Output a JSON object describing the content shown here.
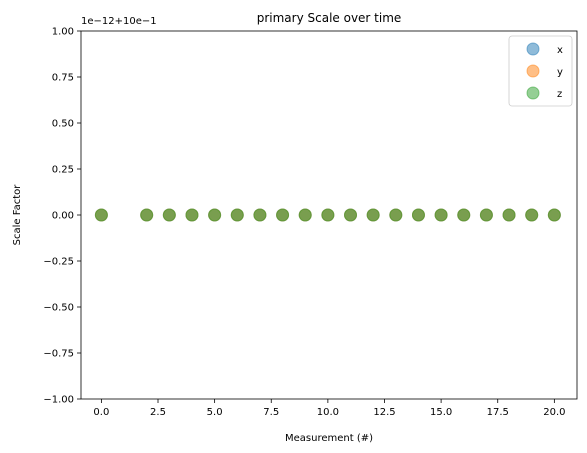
{
  "chart_data": {
    "type": "scatter",
    "title": "primary Scale over time",
    "xlabel": "Measurement (#)",
    "ylabel": "Scale Factor",
    "offset_label": "1e−12+10e−1",
    "xlim": [
      -0.9,
      21.0
    ],
    "ylim": [
      -1.0,
      1.0
    ],
    "xticks": [
      0,
      2.5,
      5,
      7.5,
      10,
      12.5,
      15,
      17.5,
      20
    ],
    "xtick_labels": [
      "0.0",
      "2.5",
      "5.0",
      "7.5",
      "10.0",
      "12.5",
      "15.0",
      "17.5",
      "20.0"
    ],
    "yticks": [
      -1.0,
      -0.75,
      -0.5,
      -0.25,
      0.0,
      0.25,
      0.5,
      0.75,
      1.0
    ],
    "ytick_labels": [
      "−1.00",
      "−0.75",
      "−0.50",
      "−0.25",
      "0.00",
      "0.25",
      "0.50",
      "0.75",
      "1.00"
    ],
    "grid": false,
    "legend_position": "top-right",
    "x": [
      0,
      2,
      3,
      4,
      5,
      6,
      7,
      8,
      9,
      10,
      11,
      12,
      13,
      14,
      15,
      16,
      17,
      18,
      19,
      20
    ],
    "series": [
      {
        "name": "x",
        "color": "#1f77b4",
        "values": [
          0,
          0,
          0,
          0,
          0,
          0,
          0,
          0,
          0,
          0,
          0,
          0,
          0,
          0,
          0,
          0,
          0,
          0,
          0,
          0
        ]
      },
      {
        "name": "y",
        "color": "#ff7f0e",
        "values": [
          0,
          0,
          0,
          0,
          0,
          0,
          0,
          0,
          0,
          0,
          0,
          0,
          0,
          0,
          0,
          0,
          0,
          0,
          0,
          0
        ]
      },
      {
        "name": "z",
        "color": "#2ca02c",
        "values": [
          0,
          0,
          0,
          0,
          0,
          0,
          0,
          0,
          0,
          0,
          0,
          0,
          0,
          0,
          0,
          0,
          0,
          0,
          0,
          0
        ]
      }
    ]
  }
}
